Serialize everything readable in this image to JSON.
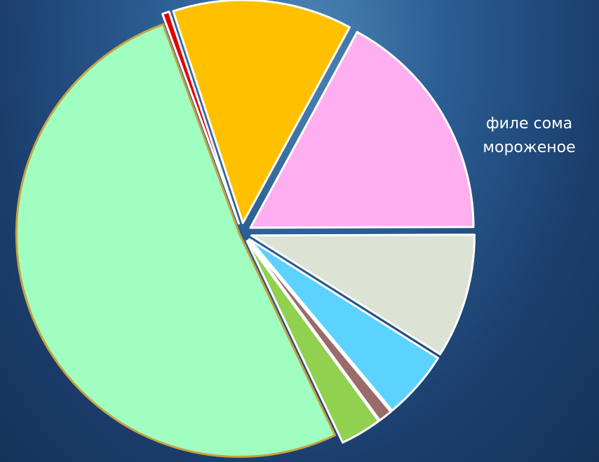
{
  "chart_data": {
    "type": "pie",
    "categories": [
      null,
      null,
      "филе сома мороженое",
      null,
      null,
      null,
      null,
      null
    ],
    "values": [
      0.5,
      13,
      17,
      9,
      5,
      1,
      3,
      51.5
    ],
    "colors": [
      "#e00000",
      "#ffc000",
      "#ffaff0",
      "#dce3d5",
      "#5bd2ff",
      "#9a6b6b",
      "#92d050",
      "#a0ffc0"
    ]
  }
}
